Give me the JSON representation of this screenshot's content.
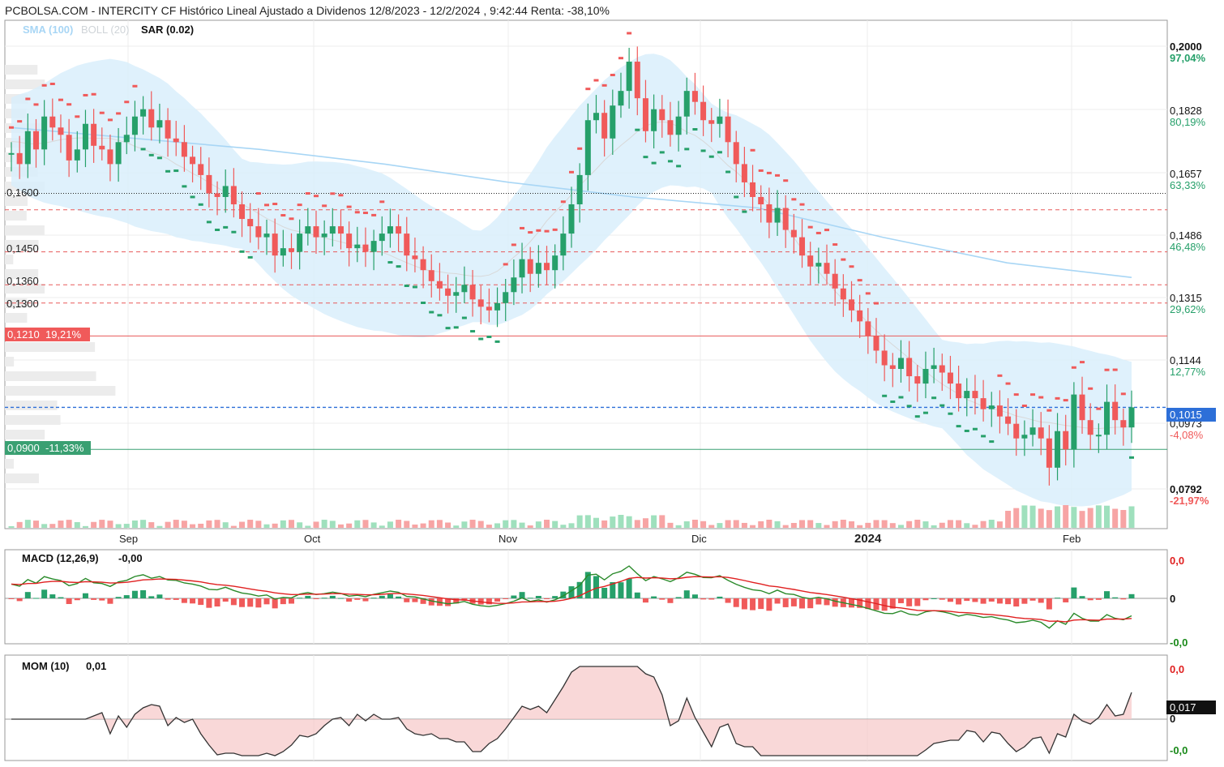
{
  "title": "PCBOLSA.COM - INTERCITY CF Histórico Lineal Ajustado a Dividenos 12/8/2023 - 12/2/2024 , 9:42:44 Renta: -38,10%",
  "legend": {
    "sma": "SMA (100)",
    "boll": "BOLL (20)",
    "sar": "SAR (0.02)"
  },
  "colors": {
    "up": "#26a06a",
    "down": "#f05a5a",
    "band": "#d9eefb",
    "sma": "#a8d6f5",
    "sar_down": "#f05a5a",
    "sar_up": "#26a06a",
    "current": "#2d6fd8",
    "resistance": "#e85a5a",
    "support": "#3aa072"
  },
  "price_axis": {
    "ticks": [
      {
        "price": "0,2000",
        "pct": "97,04%",
        "sign": "up"
      },
      {
        "price": "0,1828",
        "pct": "80,19%",
        "sign": "up"
      },
      {
        "price": "0,1657",
        "pct": "63,33%",
        "sign": "up"
      },
      {
        "price": "0,1486",
        "pct": "46,48%",
        "sign": "up"
      },
      {
        "price": "0,1315",
        "pct": "29,62%",
        "sign": "up"
      },
      {
        "price": "0,1144",
        "pct": "12,77%",
        "sign": "up"
      },
      {
        "price": "0,0973",
        "pct": "-4,08%",
        "sign": "down"
      },
      {
        "price": "0,0792",
        "pct": "-21,97%",
        "sign": "down"
      }
    ],
    "current": "0,1015"
  },
  "levels": {
    "left_labels": [
      "0,1600",
      "0,1450",
      "0,1360",
      "0,1300"
    ],
    "resistance_label": "0,1210  19,21%",
    "support_label": "0,0900  -11,33%"
  },
  "time_axis": [
    "Sep",
    "Oct",
    "Nov",
    "Dic",
    "2024",
    "Feb"
  ],
  "macd": {
    "label": "MACD (12,26,9)",
    "value": "-0,00",
    "axis": [
      "0,0",
      "0",
      "-0,0"
    ]
  },
  "mom": {
    "label": "MOM (10)",
    "value": "0,01",
    "axis": [
      "0,0",
      "0",
      "-0,0"
    ],
    "current": "0,017"
  },
  "chart_data": {
    "type": "candlestick",
    "title": "PCBOLSA.COM - INTERCITY CF Histórico Lineal Ajustado a Dividenos 12/8/2023 - 12/2/2024 , 9:42:44 Renta: -38,10%",
    "ylim": [
      0.075,
      0.205
    ],
    "reference_price": 0.1015,
    "closes": [
      0.171,
      0.168,
      0.177,
      0.172,
      0.181,
      0.178,
      0.176,
      0.169,
      0.172,
      0.179,
      0.173,
      0.172,
      0.168,
      0.174,
      0.176,
      0.181,
      0.183,
      0.178,
      0.18,
      0.175,
      0.174,
      0.17,
      0.168,
      0.165,
      0.16,
      0.159,
      0.162,
      0.157,
      0.153,
      0.151,
      0.148,
      0.149,
      0.143,
      0.145,
      0.144,
      0.149,
      0.151,
      0.148,
      0.149,
      0.151,
      0.149,
      0.145,
      0.146,
      0.144,
      0.147,
      0.149,
      0.151,
      0.149,
      0.143,
      0.142,
      0.139,
      0.136,
      0.134,
      0.132,
      0.133,
      0.135,
      0.131,
      0.129,
      0.128,
      0.13,
      0.133,
      0.137,
      0.142,
      0.138,
      0.141,
      0.139,
      0.143,
      0.149,
      0.157,
      0.165,
      0.18,
      0.182,
      0.175,
      0.184,
      0.188,
      0.196,
      0.186,
      0.177,
      0.183,
      0.18,
      0.176,
      0.181,
      0.188,
      0.185,
      0.18,
      0.179,
      0.181,
      0.174,
      0.168,
      0.163,
      0.159,
      0.157,
      0.152,
      0.156,
      0.15,
      0.148,
      0.143,
      0.14,
      0.141,
      0.138,
      0.134,
      0.131,
      0.128,
      0.125,
      0.121,
      0.117,
      0.113,
      0.112,
      0.115,
      0.11,
      0.108,
      0.112,
      0.113,
      0.111,
      0.108,
      0.104,
      0.106,
      0.104,
      0.101,
      0.102,
      0.099,
      0.097,
      0.093,
      0.094,
      0.096,
      0.093,
      0.085,
      0.095,
      0.09,
      0.105,
      0.098,
      0.094,
      0.094,
      0.103,
      0.098,
      0.096,
      0.1015
    ],
    "sma100": [
      0.178,
      0.175,
      0.172,
      0.168,
      0.163,
      0.159,
      0.156,
      0.148,
      0.141,
      0.137
    ],
    "resistance": 0.121,
    "support": 0.09,
    "dotted_level": 0.16,
    "dashed_levels": [
      0.1555,
      0.144,
      0.135,
      0.13
    ]
  }
}
